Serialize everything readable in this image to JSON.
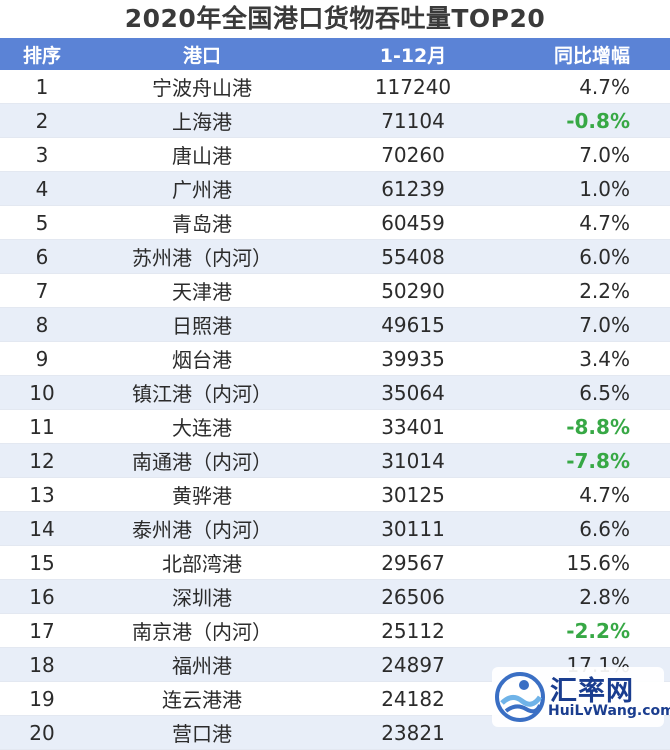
{
  "title": "2020年全国港口货物吞吐量TOP20",
  "headers": {
    "rank": "排序",
    "port": "港口",
    "period": "1-12月",
    "growth": "同比增幅"
  },
  "colors": {
    "header_bg": "#5b83d6",
    "stripe": "#e8eef8",
    "negative": "#37a845"
  },
  "rows": [
    {
      "rank": "1",
      "port": "宁波舟山港",
      "value": "117240",
      "growth": "4.7%",
      "negative": false
    },
    {
      "rank": "2",
      "port": "上海港",
      "value": "71104",
      "growth": "-0.8%",
      "negative": true
    },
    {
      "rank": "3",
      "port": "唐山港",
      "value": "70260",
      "growth": "7.0%",
      "negative": false
    },
    {
      "rank": "4",
      "port": "广州港",
      "value": "61239",
      "growth": "1.0%",
      "negative": false
    },
    {
      "rank": "5",
      "port": "青岛港",
      "value": "60459",
      "growth": "4.7%",
      "negative": false
    },
    {
      "rank": "6",
      "port": "苏州港（内河）",
      "value": "55408",
      "growth": "6.0%",
      "negative": false
    },
    {
      "rank": "7",
      "port": "天津港",
      "value": "50290",
      "growth": "2.2%",
      "negative": false
    },
    {
      "rank": "8",
      "port": "日照港",
      "value": "49615",
      "growth": "7.0%",
      "negative": false
    },
    {
      "rank": "9",
      "port": "烟台港",
      "value": "39935",
      "growth": "3.4%",
      "negative": false
    },
    {
      "rank": "10",
      "port": "镇江港（内河）",
      "value": "35064",
      "growth": "6.5%",
      "negative": false
    },
    {
      "rank": "11",
      "port": "大连港",
      "value": "33401",
      "growth": "-8.8%",
      "negative": true
    },
    {
      "rank": "12",
      "port": "南通港（内河）",
      "value": "31014",
      "growth": "-7.8%",
      "negative": true
    },
    {
      "rank": "13",
      "port": "黄骅港",
      "value": "30125",
      "growth": "4.7%",
      "negative": false
    },
    {
      "rank": "14",
      "port": "泰州港（内河）",
      "value": "30111",
      "growth": "6.6%",
      "negative": false
    },
    {
      "rank": "15",
      "port": "北部湾港",
      "value": "29567",
      "growth": "15.6%",
      "negative": false
    },
    {
      "rank": "16",
      "port": "深圳港",
      "value": "26506",
      "growth": "2.8%",
      "negative": false
    },
    {
      "rank": "17",
      "port": "南京港（内河）",
      "value": "25112",
      "growth": "-2.2%",
      "negative": true
    },
    {
      "rank": "18",
      "port": "福州港",
      "value": "24897",
      "growth": "17.1%",
      "negative": false
    },
    {
      "rank": "19",
      "port": "连云港港",
      "value": "24182",
      "growth": "",
      "negative": false
    },
    {
      "rank": "20",
      "port": "营口港",
      "value": "23821",
      "growth": "",
      "negative": false
    }
  ],
  "watermark": {
    "name": "汇率网",
    "url": "HuiLvWang.com"
  }
}
